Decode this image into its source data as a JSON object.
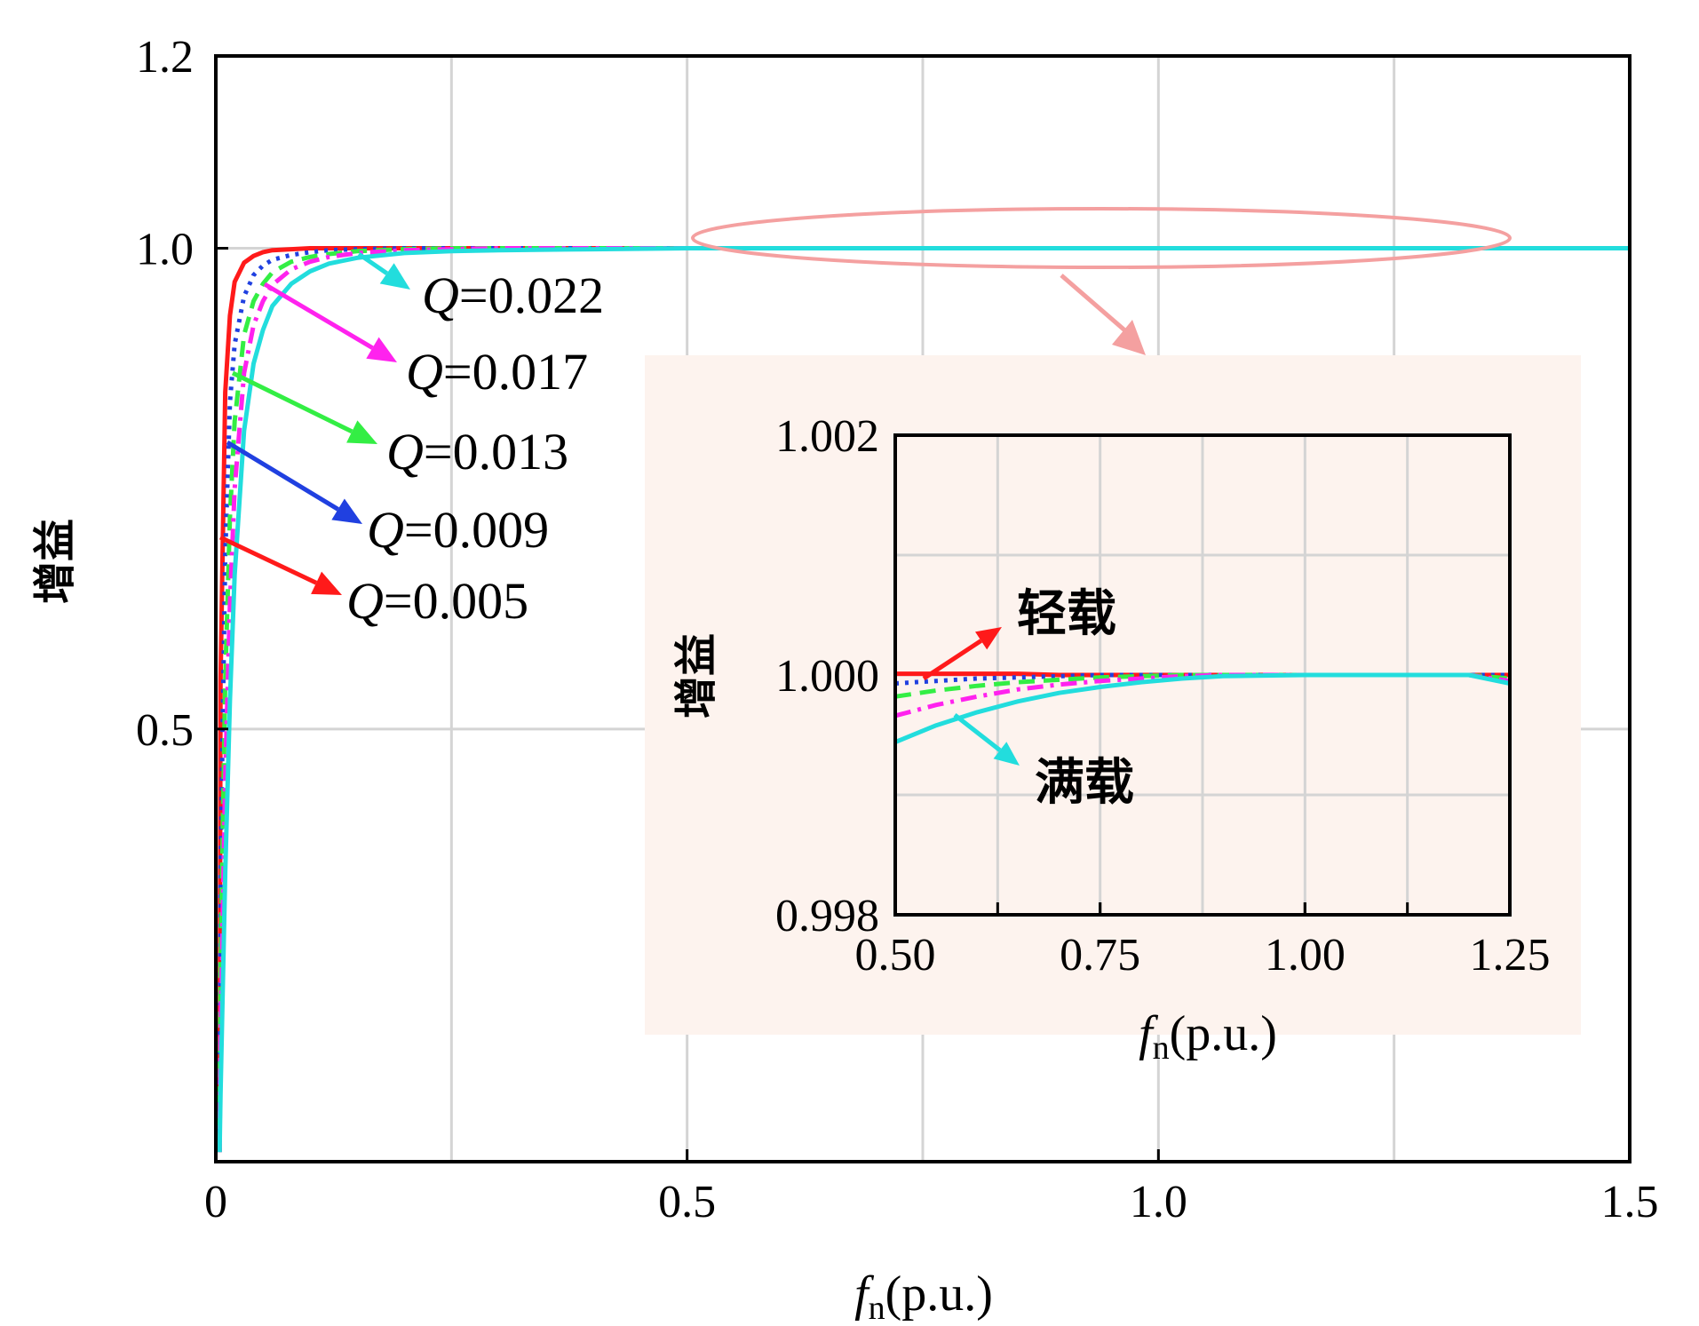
{
  "chart_data": [
    {
      "type": "line",
      "role": "main",
      "xlabel": {
        "italic": "f",
        "sub": "n",
        "rest": "(p.u.)"
      },
      "ylabel": "增益",
      "xlim": [
        0,
        1.5
      ],
      "ylim": [
        0.05,
        1.2
      ],
      "xticks": [
        0,
        0.5,
        1.0,
        1.5
      ],
      "xtick_labels": [
        "0",
        "0.5",
        "1.0",
        "1.5"
      ],
      "yticks": [
        0.5,
        1.0,
        1.2
      ],
      "ytick_labels": [
        "0.5",
        "1.0",
        "1.2"
      ],
      "grid_x": [
        0.25,
        0.5,
        0.75,
        1.0,
        1.25
      ],
      "grid_y": [
        0.5,
        1.0
      ],
      "grid": true,
      "legend": "arrow annotations",
      "x": [
        0.005,
        0.01,
        0.015,
        0.02,
        0.03,
        0.04,
        0.05,
        0.06,
        0.08,
        0.1,
        0.12,
        0.15,
        0.2,
        0.25,
        0.3,
        0.4,
        0.5,
        0.75,
        1.0,
        1.25,
        1.5
      ],
      "series": [
        {
          "name": "Q=0.005",
          "color": "#ff1a1a",
          "dash": "solid",
          "values": [
            0.55,
            0.85,
            0.93,
            0.965,
            0.985,
            0.992,
            0.996,
            0.998,
            0.999,
            1.0,
            1.0,
            1.0,
            1.0,
            1.0,
            1.0,
            1.0,
            1.0,
            1.0,
            1.0,
            1.0,
            1.0
          ]
        },
        {
          "name": "Q=0.009",
          "color": "#2040e0",
          "dash": "dot",
          "values": [
            0.35,
            0.68,
            0.84,
            0.9,
            0.95,
            0.972,
            0.982,
            0.988,
            0.993,
            0.996,
            0.998,
            0.999,
            1.0,
            1.0,
            1.0,
            1.0,
            1.0,
            1.0,
            1.0,
            1.0,
            1.0
          ]
        },
        {
          "name": "Q=0.013",
          "color": "#33ee44",
          "dash": "dash",
          "values": [
            0.25,
            0.55,
            0.72,
            0.82,
            0.91,
            0.945,
            0.963,
            0.975,
            0.986,
            0.991,
            0.994,
            0.997,
            0.999,
            1.0,
            1.0,
            1.0,
            1.0,
            1.0,
            1.0,
            1.0,
            1.0
          ]
        },
        {
          "name": "Q=0.017",
          "color": "#ff22ee",
          "dash": "dashdot",
          "values": [
            0.18,
            0.45,
            0.63,
            0.75,
            0.87,
            0.92,
            0.945,
            0.962,
            0.978,
            0.986,
            0.991,
            0.995,
            0.998,
            0.999,
            1.0,
            1.0,
            1.0,
            1.0,
            1.0,
            1.0,
            1.0
          ]
        },
        {
          "name": "Q=0.022",
          "color": "#22dddd",
          "dash": "solid",
          "values": [
            0.12,
            0.35,
            0.53,
            0.66,
            0.81,
            0.88,
            0.915,
            0.94,
            0.963,
            0.976,
            0.984,
            0.99,
            0.995,
            0.997,
            0.998,
            0.999,
            1.0,
            1.0,
            1.0,
            1.0,
            1.0
          ]
        }
      ],
      "annotations": [
        {
          "prefix": "Q",
          "text": "=0.022",
          "color": "#22dddd"
        },
        {
          "prefix": "Q",
          "text": "=0.017",
          "color": "#ff22ee"
        },
        {
          "prefix": "Q",
          "text": "=0.013",
          "color": "#33ee44"
        },
        {
          "prefix": "Q",
          "text": "=0.009",
          "color": "#2040e0"
        },
        {
          "prefix": "Q",
          "text": "=0.005",
          "color": "#ff1a1a"
        }
      ]
    },
    {
      "type": "line",
      "role": "inset",
      "xlabel": {
        "italic": "f",
        "sub": "n",
        "rest": "(p.u.)"
      },
      "ylabel": "增益",
      "xlim": [
        0.5,
        1.25
      ],
      "ylim": [
        0.998,
        1.002
      ],
      "xticks": [
        0.5,
        0.75,
        1.0,
        1.25
      ],
      "xtick_labels": [
        "0.50",
        "0.75",
        "1.00",
        "1.25"
      ],
      "yticks": [
        0.998,
        1.0,
        1.002
      ],
      "ytick_labels": [
        "0.998",
        "1.000",
        "1.002"
      ],
      "grid": true,
      "x": [
        0.5,
        0.55,
        0.6,
        0.65,
        0.7,
        0.75,
        0.8,
        0.85,
        0.9,
        1.0,
        1.1,
        1.2,
        1.25
      ],
      "series": [
        {
          "name": "Q=0.005",
          "color": "#ff1a1a",
          "dash": "solid",
          "values": [
            1.00001,
            1.00001,
            1.00001,
            1.00001,
            1.0,
            1.0,
            1.0,
            1.0,
            1.0,
            1.0,
            1.0,
            1.0,
            1.0
          ]
        },
        {
          "name": "Q=0.009",
          "color": "#2040e0",
          "dash": "dot",
          "values": [
            0.99993,
            0.99995,
            0.99997,
            0.99998,
            0.99999,
            1.0,
            1.0,
            1.0,
            1.0,
            1.0,
            1.0,
            1.0,
            1.0
          ]
        },
        {
          "name": "Q=0.013",
          "color": "#33ee44",
          "dash": "dash",
          "values": [
            0.99982,
            0.99987,
            0.99991,
            0.99994,
            0.99996,
            0.99998,
            0.99999,
            1.0,
            1.0,
            1.0,
            1.0,
            1.0,
            0.99997
          ]
        },
        {
          "name": "Q=0.017",
          "color": "#ff22ee",
          "dash": "dashdot",
          "values": [
            0.99966,
            0.99975,
            0.99982,
            0.99988,
            0.99992,
            0.99995,
            0.99997,
            0.99999,
            1.0,
            1.0,
            1.0,
            1.0,
            0.99995
          ]
        },
        {
          "name": "Q=0.022",
          "color": "#22dddd",
          "dash": "solid",
          "values": [
            0.99944,
            0.99958,
            0.99969,
            0.99978,
            0.99985,
            0.9999,
            0.99994,
            0.99997,
            0.99999,
            1.0,
            1.0,
            1.0,
            0.99993
          ]
        }
      ],
      "annotations": [
        {
          "text": "轻载",
          "color": "#ff1a1a"
        },
        {
          "text": "满载",
          "color": "#22dddd"
        }
      ]
    }
  ],
  "colors": {
    "inset_background": "#fdf3ee",
    "highlight": "#f4a0a0",
    "grid": "#d4d4d4"
  }
}
